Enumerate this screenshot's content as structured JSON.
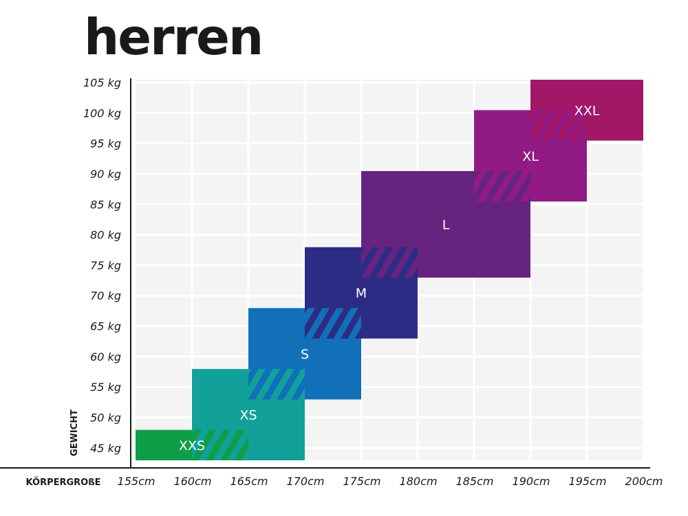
{
  "title": "herren",
  "chart_data": {
    "type": "heatmap",
    "xlabel": "KÖRPERGROßE",
    "ylabel": "GEWICHT",
    "x_ticks": [
      "155cm",
      "160cm",
      "165cm",
      "170cm",
      "175cm",
      "180cm",
      "185cm",
      "190cm",
      "195cm",
      "200cm"
    ],
    "y_ticks": [
      "45 kg",
      "50 kg",
      "55 kg",
      "60 kg",
      "65 kg",
      "70 kg",
      "75 kg",
      "80 kg",
      "85 kg",
      "90 kg",
      "95 kg",
      "100 kg",
      "105 kg"
    ],
    "x_range": [
      155,
      200
    ],
    "y_range": [
      42.5,
      105
    ],
    "grid": true,
    "sizes": [
      {
        "label": "XXS",
        "height_cm": [
          155,
          165
        ],
        "weight_kg": [
          42.5,
          47.5
        ],
        "color": "#0f9d48"
      },
      {
        "label": "XS",
        "height_cm": [
          160,
          170
        ],
        "weight_kg": [
          42.5,
          57.5
        ],
        "color": "#11a19a"
      },
      {
        "label": "S",
        "height_cm": [
          165,
          175
        ],
        "weight_kg": [
          52.5,
          67.5
        ],
        "color": "#1170b8"
      },
      {
        "label": "M",
        "height_cm": [
          170,
          180
        ],
        "weight_kg": [
          62.5,
          77.5
        ],
        "color": "#2d2c84"
      },
      {
        "label": "L",
        "height_cm": [
          175,
          190
        ],
        "weight_kg": [
          72.5,
          90
        ],
        "color": "#66247f"
      },
      {
        "label": "XL",
        "height_cm": [
          185,
          195
        ],
        "weight_kg": [
          85,
          100
        ],
        "color": "#921a84"
      },
      {
        "label": "XXL",
        "height_cm": [
          190,
          200
        ],
        "weight_kg": [
          95,
          105
        ],
        "color": "#a31767"
      }
    ]
  }
}
